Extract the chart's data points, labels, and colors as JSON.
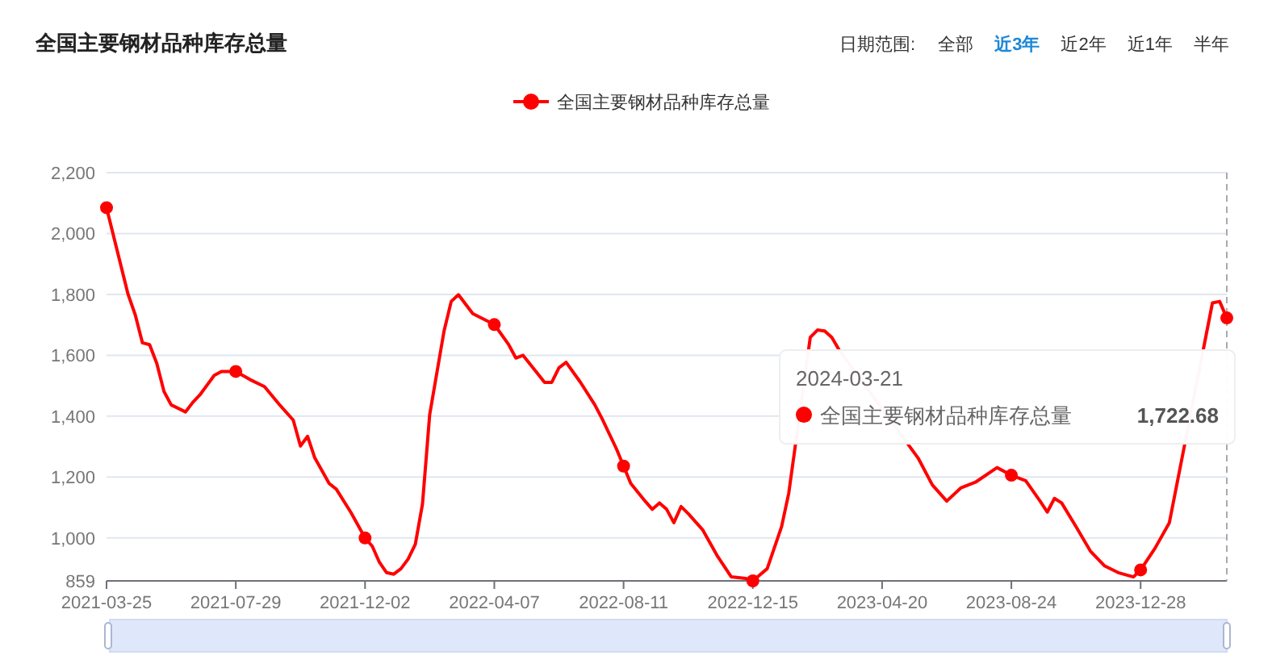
{
  "chart_data": {
    "type": "line",
    "title": "全国主要钢材品种库存总量",
    "x": [
      "2021-03-25",
      "2021-04-15",
      "2021-04-22",
      "2021-04-29",
      "2021-05-06",
      "2021-05-13",
      "2021-05-20",
      "2021-05-27",
      "2021-06-10",
      "2021-06-17",
      "2021-06-24",
      "2021-07-08",
      "2021-07-15",
      "2021-07-29",
      "2021-08-12",
      "2021-08-26",
      "2021-09-09",
      "2021-09-23",
      "2021-09-30",
      "2021-10-07",
      "2021-10-14",
      "2021-10-28",
      "2021-11-04",
      "2021-11-18",
      "2021-12-02",
      "2021-12-09",
      "2021-12-16",
      "2021-12-23",
      "2021-12-30",
      "2022-01-06",
      "2022-01-13",
      "2022-01-20",
      "2022-01-27",
      "2022-02-03",
      "2022-02-17",
      "2022-02-24",
      "2022-03-03",
      "2022-03-17",
      "2022-04-07",
      "2022-04-21",
      "2022-04-28",
      "2022-05-05",
      "2022-05-19",
      "2022-05-26",
      "2022-06-02",
      "2022-06-09",
      "2022-06-16",
      "2022-06-30",
      "2022-07-14",
      "2022-07-21",
      "2022-08-04",
      "2022-08-11",
      "2022-08-18",
      "2022-09-01",
      "2022-09-08",
      "2022-09-15",
      "2022-09-22",
      "2022-09-29",
      "2022-10-06",
      "2022-10-13",
      "2022-10-27",
      "2022-11-10",
      "2022-11-24",
      "2022-12-08",
      "2022-12-15",
      "2022-12-29",
      "2023-01-12",
      "2023-01-19",
      "2023-02-09",
      "2023-02-16",
      "2023-02-23",
      "2023-03-02",
      "2023-03-09",
      "2023-05-25",
      "2023-06-08",
      "2023-06-22",
      "2023-07-06",
      "2023-07-20",
      "2023-08-10",
      "2023-08-24",
      "2023-09-07",
      "2023-09-21",
      "2023-09-28",
      "2023-10-05",
      "2023-10-12",
      "2023-10-26",
      "2023-11-09",
      "2023-11-23",
      "2023-12-07",
      "2023-12-21",
      "2023-12-28",
      "2024-01-11",
      "2024-01-25",
      "2024-03-07",
      "2024-03-14",
      "2024-03-21"
    ],
    "series": [
      {
        "name": "全国主要钢材品种库存总量",
        "color": "#ff0000",
        "values": [
          2085,
          1800,
          1733,
          1641,
          1635,
          1573,
          1481,
          1437,
          1414,
          1445,
          1470,
          1534,
          1547,
          1547,
          1520,
          1497,
          1440,
          1387,
          1302,
          1334,
          1263,
          1179,
          1160,
          1085,
          1000,
          973,
          920,
          886,
          881,
          899,
          931,
          979,
          1112,
          1405,
          1680,
          1777,
          1799,
          1737,
          1701,
          1635,
          1591,
          1600,
          1541,
          1511,
          1511,
          1559,
          1577,
          1511,
          1437,
          1392,
          1293,
          1236,
          1179,
          1121,
          1094,
          1115,
          1094,
          1050,
          1103,
          1080,
          1027,
          943,
          872,
          867,
          859,
          899,
          1037,
          1147,
          1659,
          1683,
          1680,
          1659,
          1618,
          1263,
          1174,
          1121,
          1165,
          1183,
          1231,
          1206,
          1188,
          1121,
          1085,
          1130,
          1115,
          1037,
          957,
          908,
          885,
          872,
          895,
          966,
          1050,
          1772,
          1777,
          1722.68
        ]
      }
    ],
    "xlim": [
      "2021-03-25",
      "2024-03-21"
    ],
    "xticks": [
      "2021-03-25",
      "2021-07-29",
      "2021-12-02",
      "2022-04-07",
      "2022-08-11",
      "2022-12-15",
      "2023-04-20",
      "2023-08-24",
      "2023-12-28"
    ],
    "ylim": [
      859,
      2200
    ],
    "yticks": [
      859,
      {
        "value": 1000,
        "label": "1,000"
      },
      {
        "value": 1200,
        "label": "1,200"
      },
      {
        "value": 1400,
        "label": "1,400"
      },
      {
        "value": 1600,
        "label": "1,600"
      },
      {
        "value": 1800,
        "label": "1,800"
      },
      {
        "value": 2000,
        "label": "2,000"
      },
      {
        "value": 2200,
        "label": "2,200"
      }
    ],
    "grid": "y",
    "legend": "top",
    "line_style": "solid",
    "ref_lines": [
      {
        "axis": "x",
        "value": "2024-03-21",
        "color": "#aaaaaa",
        "line_style": "dashed"
      }
    ],
    "annotations": [
      "日期范围:",
      "全部",
      "近3年",
      "近2年",
      "近1年",
      "半年",
      "2024-03-21",
      "全国主要钢材品种库存总量",
      "1,722.68"
    ]
  }
}
